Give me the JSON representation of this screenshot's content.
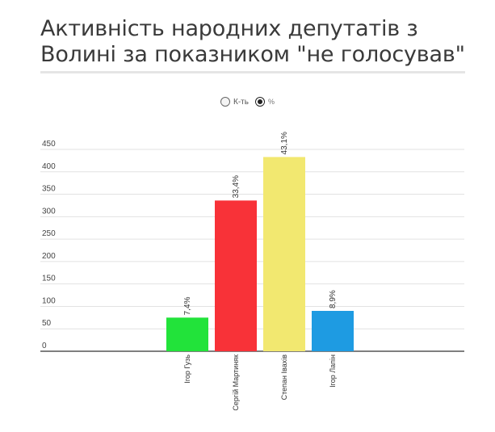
{
  "title_lines": [
    "Активність народних депутатів з",
    "Волині за показником \"не голосував\""
  ],
  "toggle": {
    "options": [
      {
        "label": "К-ть",
        "checked": false
      },
      {
        "label": "%",
        "checked": true
      }
    ]
  },
  "chart_data": {
    "type": "bar",
    "categories": [
      "Ігор Гузь",
      "Сергій Мартиняк",
      "Степан Івахів",
      "Ігор Лапін"
    ],
    "values": [
      75,
      336,
      433,
      90
    ],
    "data_labels": [
      "7,4%",
      "33,4%",
      "43,1%",
      "8,9%"
    ],
    "colors": [
      "#22e33a",
      "#f83238",
      "#f2e870",
      "#1e9be2"
    ],
    "yticks": [
      0,
      50,
      100,
      150,
      200,
      250,
      300,
      350,
      400,
      450
    ],
    "ylim": [
      0,
      450
    ],
    "grid": true
  }
}
